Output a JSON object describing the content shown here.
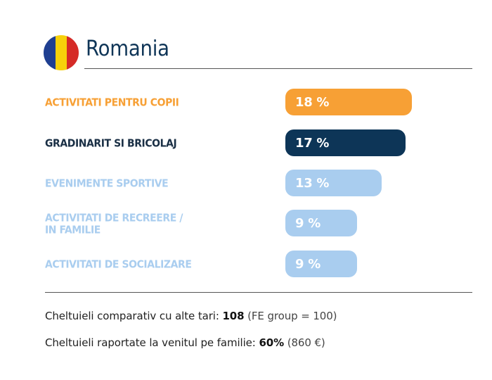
{
  "header": {
    "country": "Romania",
    "flag_colors": [
      "#1f3f91",
      "#f7d10a",
      "#d52b27"
    ]
  },
  "colors": {
    "orange": "#f7a035",
    "navy": "#0d3557",
    "light_blue": "#a9cdef"
  },
  "chart_data": {
    "type": "bar",
    "orientation": "horizontal",
    "categories": [
      "ACTIVITATI PENTRU COPII",
      "GRADINARIT SI BRICOLAJ",
      "EVENIMENTE SPORTIVE",
      "ACTIVITATI DE RECREERE /\nIN FAMILIE",
      "ACTIVITATI DE SOCIALIZARE"
    ],
    "values": [
      18,
      17,
      13,
      9,
      9
    ],
    "value_labels": [
      "18 %",
      "17 %",
      "13 %",
      "9 %",
      "9 %"
    ],
    "bar_colors": [
      "#f7a035",
      "#0d3557",
      "#a9cdef",
      "#a9cdef",
      "#a9cdef"
    ],
    "label_colors": [
      "#f7a035",
      "#1a2f45",
      "#a9cdef",
      "#a9cdef",
      "#a9cdef"
    ],
    "xlim": [
      0,
      18
    ],
    "grid": false
  },
  "stats": {
    "spending_label": "Cheltuieli comparativ cu alte tari: ",
    "spending_value": "108",
    "spending_note": " (FE group = 100)",
    "income_label": "Cheltuieli raportate la venitul pe familie: ",
    "income_value": "60%",
    "income_note": " (860 €)"
  }
}
